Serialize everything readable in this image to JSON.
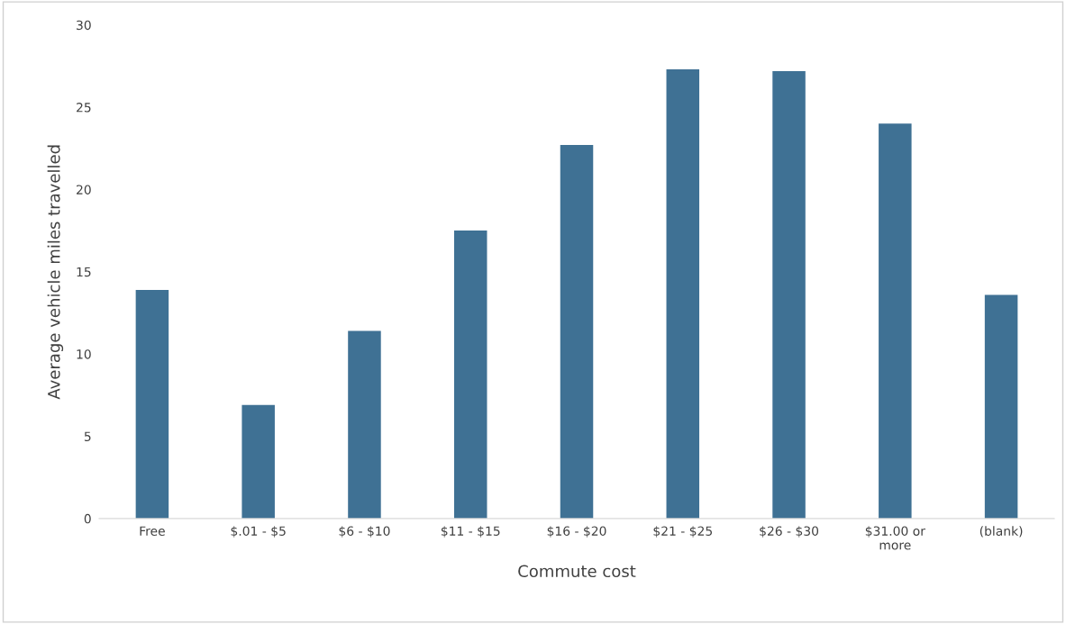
{
  "chart_data": {
    "type": "bar",
    "xlabel": "Commute cost",
    "ylabel": "Average vehicle miles travelled",
    "categories": [
      "Free",
      "$.01 - $5",
      "$6 - $10",
      "$11 - $15",
      "$16 - $20",
      "$21 - $25",
      "$26 - $30",
      "$31.00 or\nmore",
      "(blank)"
    ],
    "values": [
      13.9,
      6.9,
      11.4,
      17.5,
      22.7,
      27.3,
      27.2,
      24.0,
      13.6
    ],
    "color": "#3f7194",
    "ylim": [
      0,
      30
    ],
    "yticks": [
      0,
      5,
      10,
      15,
      20,
      25,
      30
    ],
    "grid": false,
    "legend": false
  }
}
